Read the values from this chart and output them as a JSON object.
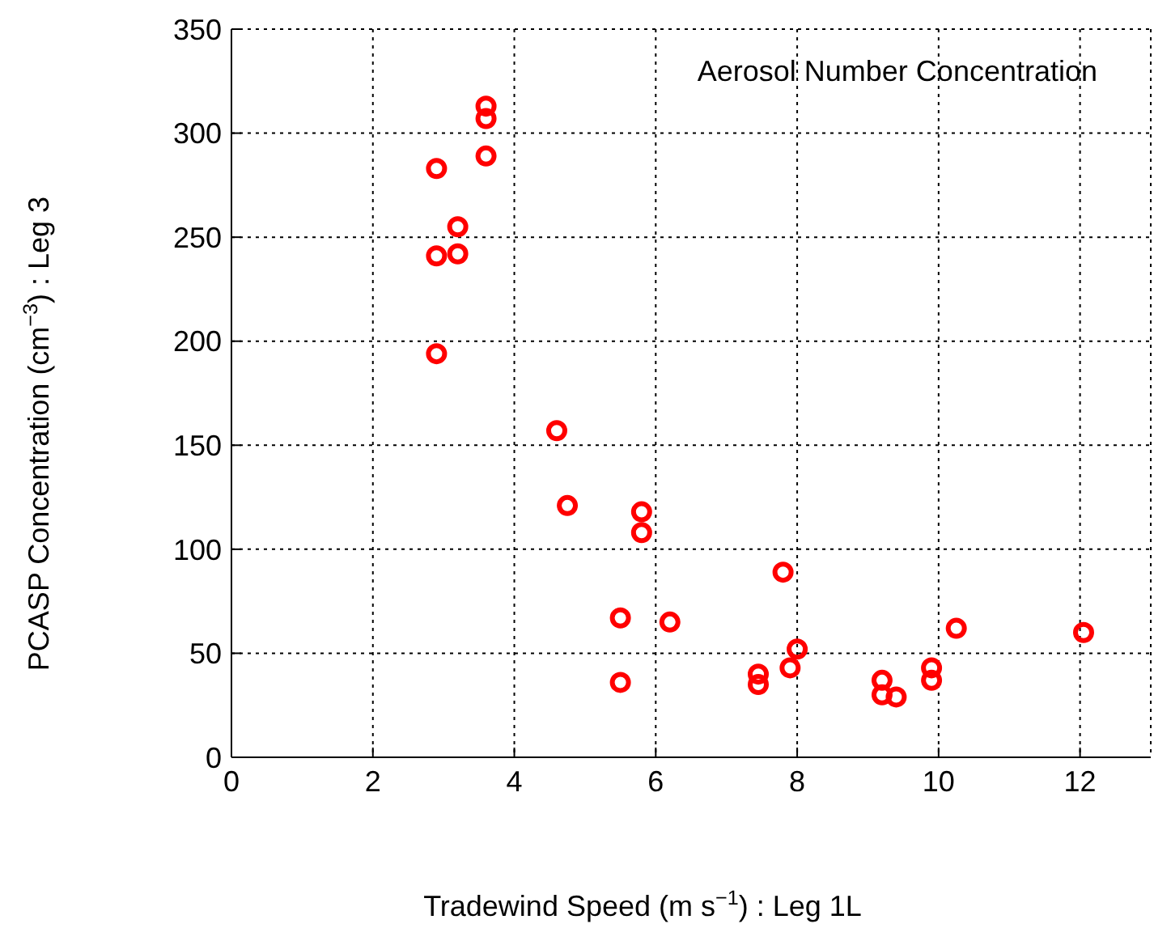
{
  "chart_data": {
    "type": "scatter",
    "xlabel": "Tradewind Speed (m s$^{−1}$) :  Leg 1L",
    "ylabel": "PCASP Concentration (cm$^{−3}$) :  Leg 3",
    "annotations": [
      "Aerosol Number Concentration"
    ],
    "x": [
      2.9,
      2.9,
      2.9,
      3.2,
      3.2,
      3.6,
      3.6,
      3.6,
      4.6,
      4.75,
      5.8,
      5.8,
      5.5,
      5.5,
      6.2,
      7.8,
      7.45,
      7.45,
      7.9,
      8.0,
      9.2,
      9.2,
      9.4,
      9.9,
      9.9,
      10.25,
      12.05
    ],
    "series": [
      {
        "color": "#ff0000",
        "values": [
          283,
          241,
          194,
          255,
          242,
          313,
          307,
          289,
          157,
          121,
          118,
          108,
          67,
          36,
          65,
          89,
          40,
          35,
          43,
          52,
          37,
          30,
          29,
          43,
          37,
          62,
          60
        ]
      }
    ],
    "xlim": [
      0,
      13
    ],
    "xticks": [
      0,
      2,
      4,
      6,
      8,
      10,
      12
    ],
    "ylim": [
      0,
      350
    ],
    "yticks": [
      0,
      50,
      100,
      150,
      200,
      250,
      300,
      350
    ],
    "grid": true,
    "marker": "circle"
  }
}
